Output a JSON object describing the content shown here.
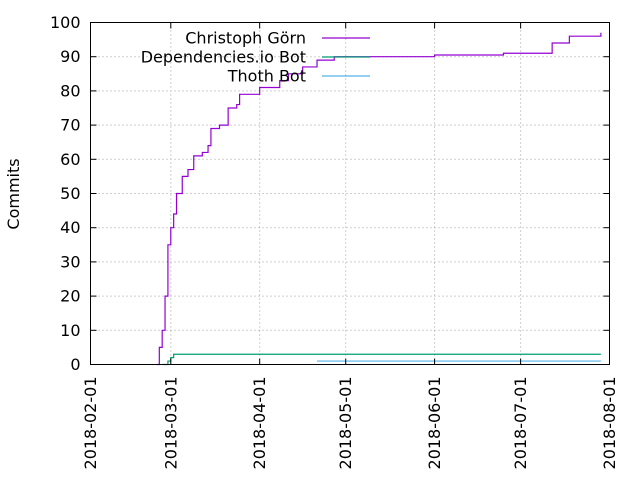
{
  "chart_data": {
    "type": "line",
    "title": "",
    "xlabel": "",
    "ylabel": "Commits",
    "ylim": [
      0,
      100
    ],
    "xlim": [
      "2018-02-01",
      "2018-08-01"
    ],
    "yticks": [
      "0",
      "10",
      "20",
      "30",
      "40",
      "50",
      "60",
      "70",
      "80",
      "90",
      "100"
    ],
    "xticks": [
      "2018-02-01",
      "2018-03-01",
      "2018-04-01",
      "2018-05-01",
      "2018-06-01",
      "2018-07-01",
      "2018-08-01"
    ],
    "grid": true,
    "legend_position": "top-right",
    "series": [
      {
        "name": "Christoph Görn",
        "color": "#9400d3",
        "points": [
          [
            "2018-02-24",
            0
          ],
          [
            "2018-02-25",
            5
          ],
          [
            "2018-02-26",
            10
          ],
          [
            "2018-02-27",
            20
          ],
          [
            "2018-02-28",
            35
          ],
          [
            "2018-03-01",
            40
          ],
          [
            "2018-03-02",
            44
          ],
          [
            "2018-03-03",
            50
          ],
          [
            "2018-03-05",
            55
          ],
          [
            "2018-03-07",
            57
          ],
          [
            "2018-03-09",
            61
          ],
          [
            "2018-03-12",
            62
          ],
          [
            "2018-03-14",
            64
          ],
          [
            "2018-03-15",
            69
          ],
          [
            "2018-03-18",
            70
          ],
          [
            "2018-03-20",
            70
          ],
          [
            "2018-03-21",
            75
          ],
          [
            "2018-03-24",
            76
          ],
          [
            "2018-03-25",
            79
          ],
          [
            "2018-04-01",
            81
          ],
          [
            "2018-04-08",
            83
          ],
          [
            "2018-04-11",
            85
          ],
          [
            "2018-04-16",
            87
          ],
          [
            "2018-04-21",
            89
          ],
          [
            "2018-04-27",
            90
          ],
          [
            "2018-05-15",
            90
          ],
          [
            "2018-06-01",
            90.5
          ],
          [
            "2018-06-10",
            90.5
          ],
          [
            "2018-06-25",
            91
          ],
          [
            "2018-07-11",
            91
          ],
          [
            "2018-07-12",
            94
          ],
          [
            "2018-07-18",
            96
          ],
          [
            "2018-07-29",
            97
          ]
        ]
      },
      {
        "name": "Dependencies.io Bot",
        "color": "#009e73",
        "points": [
          [
            "2018-02-26",
            0
          ],
          [
            "2018-02-28",
            1
          ],
          [
            "2018-03-01",
            2
          ],
          [
            "2018-03-02",
            3
          ],
          [
            "2018-07-29",
            3
          ]
        ]
      },
      {
        "name": "Thoth Bot",
        "color": "#56b4e9",
        "points": [
          [
            "2018-04-21",
            1
          ],
          [
            "2018-07-29",
            1
          ]
        ]
      }
    ]
  }
}
